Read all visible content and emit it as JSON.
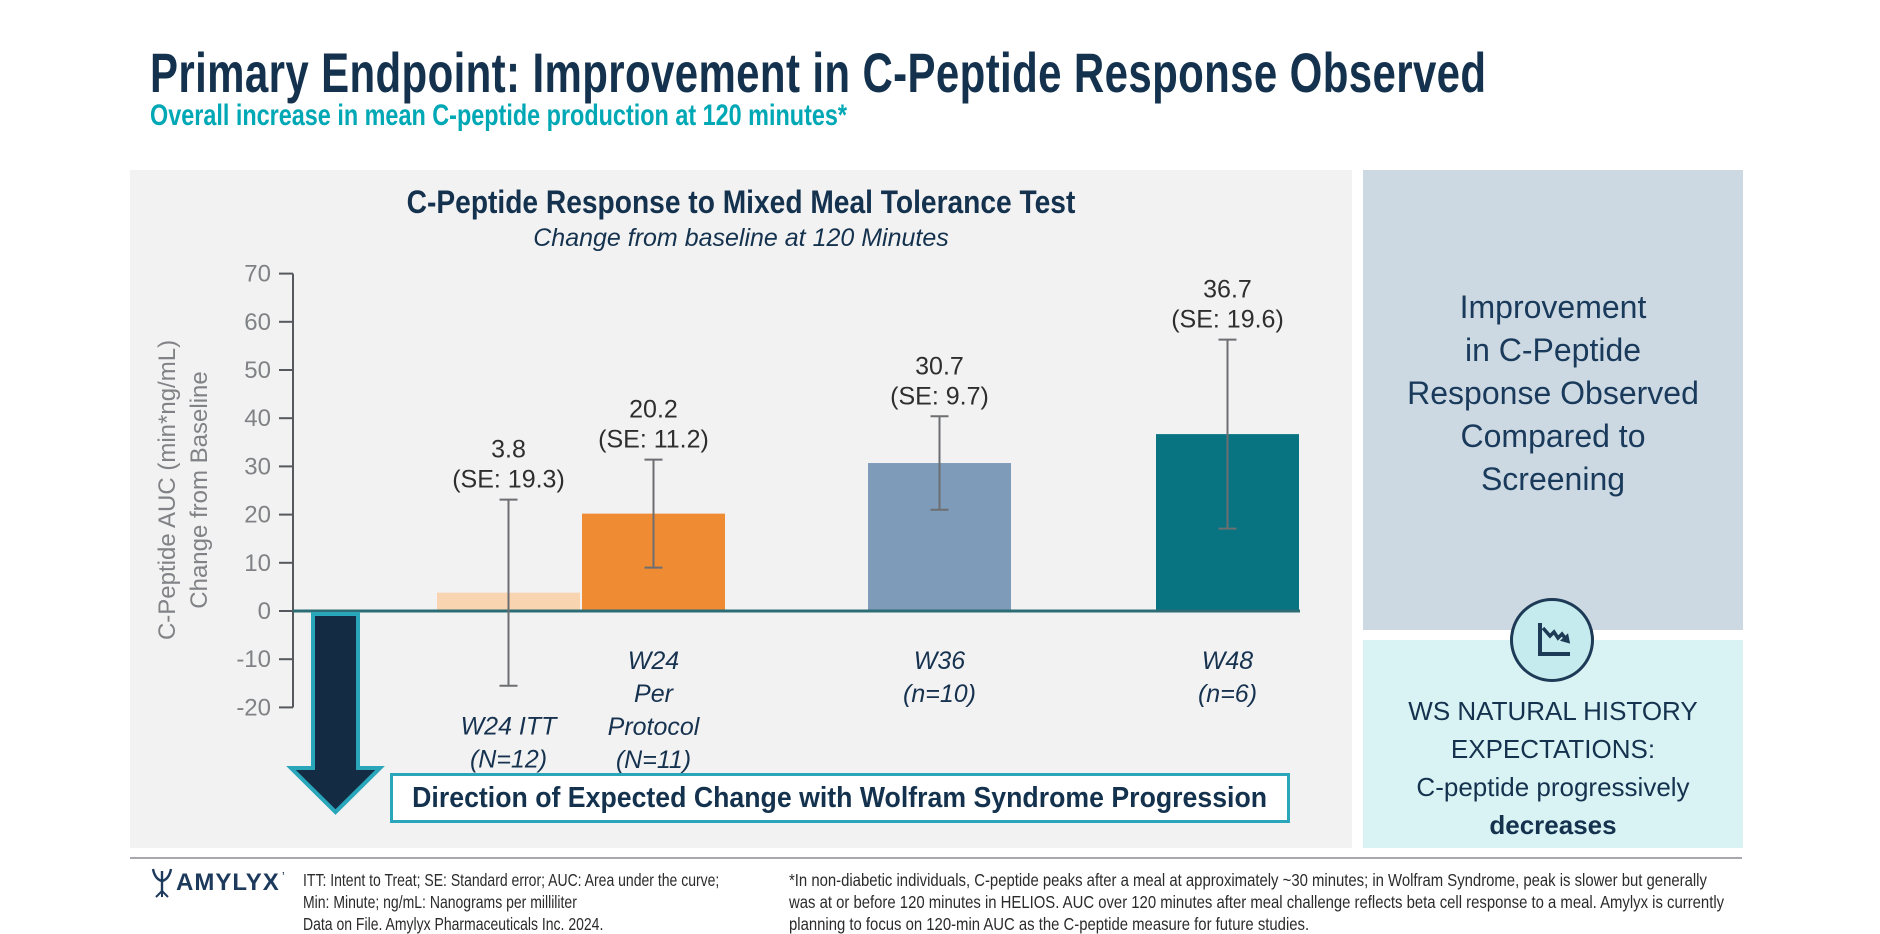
{
  "header": {
    "title": "Primary Endpoint: Improvement in C-Peptide Response Observed",
    "subtitle": "Overall increase in mean C-peptide production at 120 minutes*"
  },
  "chart_data": {
    "type": "bar",
    "title": "C-Peptide Response to Mixed Meal Tolerance Test",
    "subtitle": "Change from baseline at 120 Minutes",
    "ylabel_lines": [
      "C-Peptide AUC (min*ng/mL)",
      "Change from Baseline"
    ],
    "ylim": [
      -20,
      70
    ],
    "ytick_step": 10,
    "grid": false,
    "legend": "none",
    "categories": [
      {
        "label_lines": [
          "W24 ITT",
          "(N=12)"
        ],
        "value": 3.8,
        "se": 19.3,
        "color": "#f8d4b0"
      },
      {
        "label_lines": [
          "W24",
          "Per",
          "Protocol",
          "(N=11)"
        ],
        "value": 20.2,
        "se": 11.2,
        "color": "#ee8b33"
      },
      {
        "label_lines": [
          "W36",
          "(n=10)"
        ],
        "value": 30.7,
        "se": 9.7,
        "color": "#7e9cba"
      },
      {
        "label_lines": [
          "W48",
          "(n=6)"
        ],
        "value": 36.7,
        "se": 19.6,
        "color": "#087482"
      }
    ],
    "zero_line_color": "#2c6d75",
    "annotation": "Direction of Expected Change with Wolfram Syndrome Progression"
  },
  "right_panel": {
    "headline_lines": [
      "Improvement",
      "in C-Peptide",
      "Response Observed",
      "Compared to",
      "Screening"
    ],
    "expectations": {
      "icon": "declining-chart-icon",
      "lines": [
        "WS NATURAL HISTORY",
        "EXPECTATIONS:",
        "C-peptide progressively"
      ],
      "emphasis": "decreases"
    }
  },
  "footer": {
    "brand": "AMYLYX",
    "brand_mark": "’",
    "abbreviations_lines": [
      "ITT: Intent to Treat; SE: Standard error; AUC: Area under the curve;",
      "Min: Minute; ng/mL: Nanograms per milliliter",
      "Data on File. Amylyx Pharmaceuticals Inc. 2024."
    ],
    "footnote_lines": [
      "*In non-diabetic individuals, C-peptide peaks after a meal at approximately ~30 minutes; in Wolfram Syndrome, peak is slower but generally",
      "was at or before 120 minutes in HELIOS. AUC over 120 minutes after meal challenge reflects beta cell response to a meal. Amylyx is currently",
      "planning to focus on 120-min AUC as the C-peptide measure for future studies."
    ]
  },
  "colors": {
    "navy": "#14324e",
    "teal_accent": "#00a8b5",
    "chart_panel_bg": "#f2f2f3",
    "axis_gray": "#808285",
    "error_bar_gray": "#6d6e71",
    "arrow_fill": "#132c44",
    "arrow_border": "#2aa6ba",
    "right_top_bg": "#ccd9e2",
    "right_bottom_bg": "#d9f3f5",
    "circle_bg": "#c6ebee"
  }
}
